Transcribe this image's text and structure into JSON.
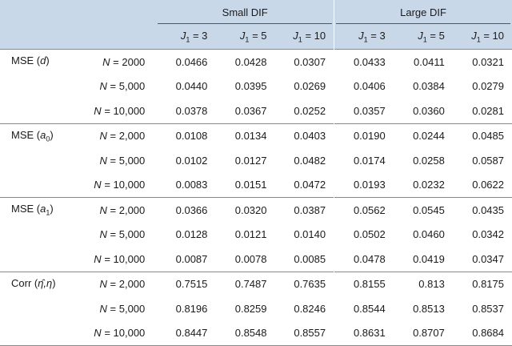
{
  "header": {
    "groups": [
      "Small DIF",
      "Large DIF"
    ],
    "j_symbol": "J",
    "j_sub": "1",
    "j_values": [
      "= 3",
      "= 5",
      "= 10",
      "= 3",
      "= 5",
      "= 10"
    ]
  },
  "rows": [
    {
      "metric": {
        "pre": "MSE (",
        "var": "d",
        "sub": "",
        "post": ")"
      },
      "lines": [
        {
          "n": "= 2000",
          "vals": [
            "0.0466",
            "0.0428",
            "0.0307",
            "0.0433",
            "0.0411",
            "0.0321"
          ]
        },
        {
          "n": "= 5,000",
          "vals": [
            "0.0440",
            "0.0395",
            "0.0269",
            "0.0406",
            "0.0384",
            "0.0279"
          ]
        },
        {
          "n": "= 10,000",
          "vals": [
            "0.0378",
            "0.0367",
            "0.0252",
            "0.0357",
            "0.0360",
            "0.0281"
          ]
        }
      ]
    },
    {
      "metric": {
        "pre": "MSE (",
        "var": "a",
        "sub": "0",
        "post": ")"
      },
      "lines": [
        {
          "n": "= 2,000",
          "vals": [
            "0.0108",
            "0.0134",
            "0.0403",
            "0.0190",
            "0.0244",
            "0.0485"
          ]
        },
        {
          "n": "= 5,000",
          "vals": [
            "0.0102",
            "0.0127",
            "0.0482",
            "0.0174",
            "0.0258",
            "0.0587"
          ]
        },
        {
          "n": "= 10,000",
          "vals": [
            "0.0083",
            "0.0151",
            "0.0472",
            "0.0193",
            "0.0232",
            "0.0622"
          ]
        }
      ]
    },
    {
      "metric": {
        "pre": "MSE (",
        "var": "a",
        "sub": "1",
        "post": ")"
      },
      "lines": [
        {
          "n": "= 2,000",
          "vals": [
            "0.0366",
            "0.0320",
            "0.0387",
            "0.0562",
            "0.0545",
            "0.0435"
          ]
        },
        {
          "n": "= 5,000",
          "vals": [
            "0.0128",
            "0.0121",
            "0.0140",
            "0.0502",
            "0.0460",
            "0.0342"
          ]
        },
        {
          "n": "= 10,000",
          "vals": [
            "0.0087",
            "0.0078",
            "0.0085",
            "0.0478",
            "0.0419",
            "0.0347"
          ]
        }
      ]
    },
    {
      "metric": {
        "pre": "Corr (",
        "var": "η̂,η",
        "sub": "",
        "post": ")"
      },
      "lines": [
        {
          "n": "= 2,000",
          "vals": [
            "0.7515",
            "0.7487",
            "0.7635",
            "0.8155",
            "0.813",
            "0.8175"
          ]
        },
        {
          "n": "= 5,000",
          "vals": [
            "0.8196",
            "0.8259",
            "0.8246",
            "0.8544",
            "0.8513",
            "0.8537"
          ]
        },
        {
          "n": "= 10,000",
          "vals": [
            "0.8447",
            "0.8548",
            "0.8557",
            "0.8631",
            "0.8707",
            "0.8684"
          ]
        }
      ]
    }
  ],
  "n_symbol": "N"
}
